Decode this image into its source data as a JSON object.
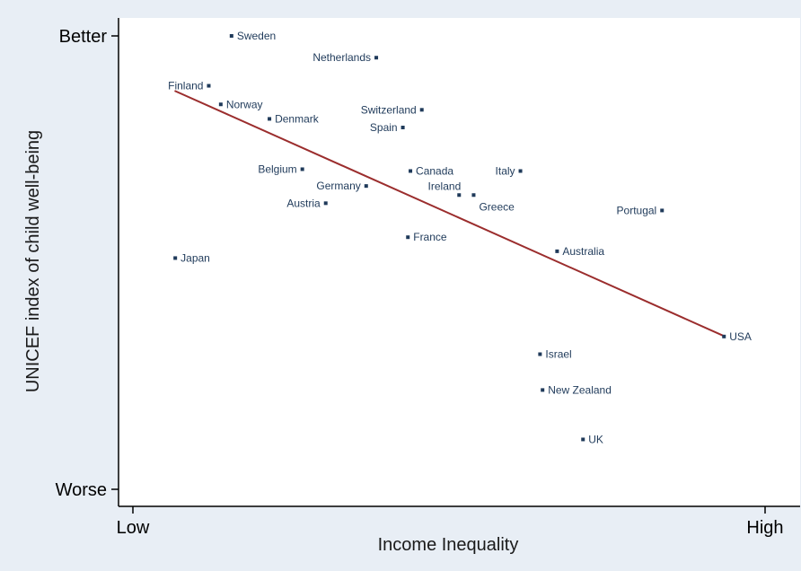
{
  "chart_data": {
    "type": "scatter",
    "xlabel": "Income Inequality",
    "ylabel": "UNICEF index of child well-being",
    "x_ticks": [
      {
        "label": "Low",
        "value": 0
      },
      {
        "label": "High",
        "value": 100
      }
    ],
    "y_ticks": [
      {
        "label": "Better",
        "value": 100
      },
      {
        "label": "Worse",
        "value": 0
      }
    ],
    "xlim": [
      0,
      100
    ],
    "ylim": [
      0,
      100
    ],
    "grid": false,
    "colors": {
      "background": "#e8eef5",
      "plot_area": "#ffffff",
      "point": "#1f3a5a",
      "label": "#1f3a5a",
      "trend_line": "#9b2d2d"
    },
    "points": [
      {
        "name": "Sweden",
        "x": 15.6,
        "y": 100,
        "side": "right"
      },
      {
        "name": "Netherlands",
        "x": 38.5,
        "y": 95.2,
        "side": "left"
      },
      {
        "name": "Finland",
        "x": 12.0,
        "y": 89.0,
        "side": "left"
      },
      {
        "name": "Norway",
        "x": 13.9,
        "y": 84.9,
        "side": "right"
      },
      {
        "name": "Denmark",
        "x": 21.6,
        "y": 81.7,
        "side": "right"
      },
      {
        "name": "Switzerland",
        "x": 45.7,
        "y": 83.7,
        "side": "left"
      },
      {
        "name": "Spain",
        "x": 42.7,
        "y": 79.8,
        "side": "left"
      },
      {
        "name": "Belgium",
        "x": 26.8,
        "y": 70.6,
        "side": "left"
      },
      {
        "name": "Canada",
        "x": 43.9,
        "y": 70.2,
        "side": "right"
      },
      {
        "name": "Italy",
        "x": 61.3,
        "y": 70.2,
        "side": "left"
      },
      {
        "name": "Germany",
        "x": 36.9,
        "y": 66.9,
        "side": "left"
      },
      {
        "name": "Ireland",
        "x": 51.6,
        "y": 64.9,
        "side": "left-above"
      },
      {
        "name": "Greece",
        "x": 53.9,
        "y": 64.9,
        "side": "right-below"
      },
      {
        "name": "Austria",
        "x": 30.5,
        "y": 63.1,
        "side": "left"
      },
      {
        "name": "Portugal",
        "x": 83.7,
        "y": 61.5,
        "side": "left"
      },
      {
        "name": "France",
        "x": 43.5,
        "y": 55.6,
        "side": "right"
      },
      {
        "name": "Australia",
        "x": 67.1,
        "y": 52.5,
        "side": "right"
      },
      {
        "name": "Japan",
        "x": 6.7,
        "y": 51.0,
        "side": "right"
      },
      {
        "name": "USA",
        "x": 93.5,
        "y": 33.7,
        "side": "right"
      },
      {
        "name": "Israel",
        "x": 64.4,
        "y": 29.8,
        "side": "right"
      },
      {
        "name": "New Zealand",
        "x": 64.8,
        "y": 21.9,
        "side": "right"
      },
      {
        "name": "UK",
        "x": 71.2,
        "y": 11.0,
        "side": "right"
      }
    ],
    "trend_line": {
      "x": [
        6.6,
        93.5
      ],
      "y": [
        87.9,
        33.8
      ]
    }
  }
}
